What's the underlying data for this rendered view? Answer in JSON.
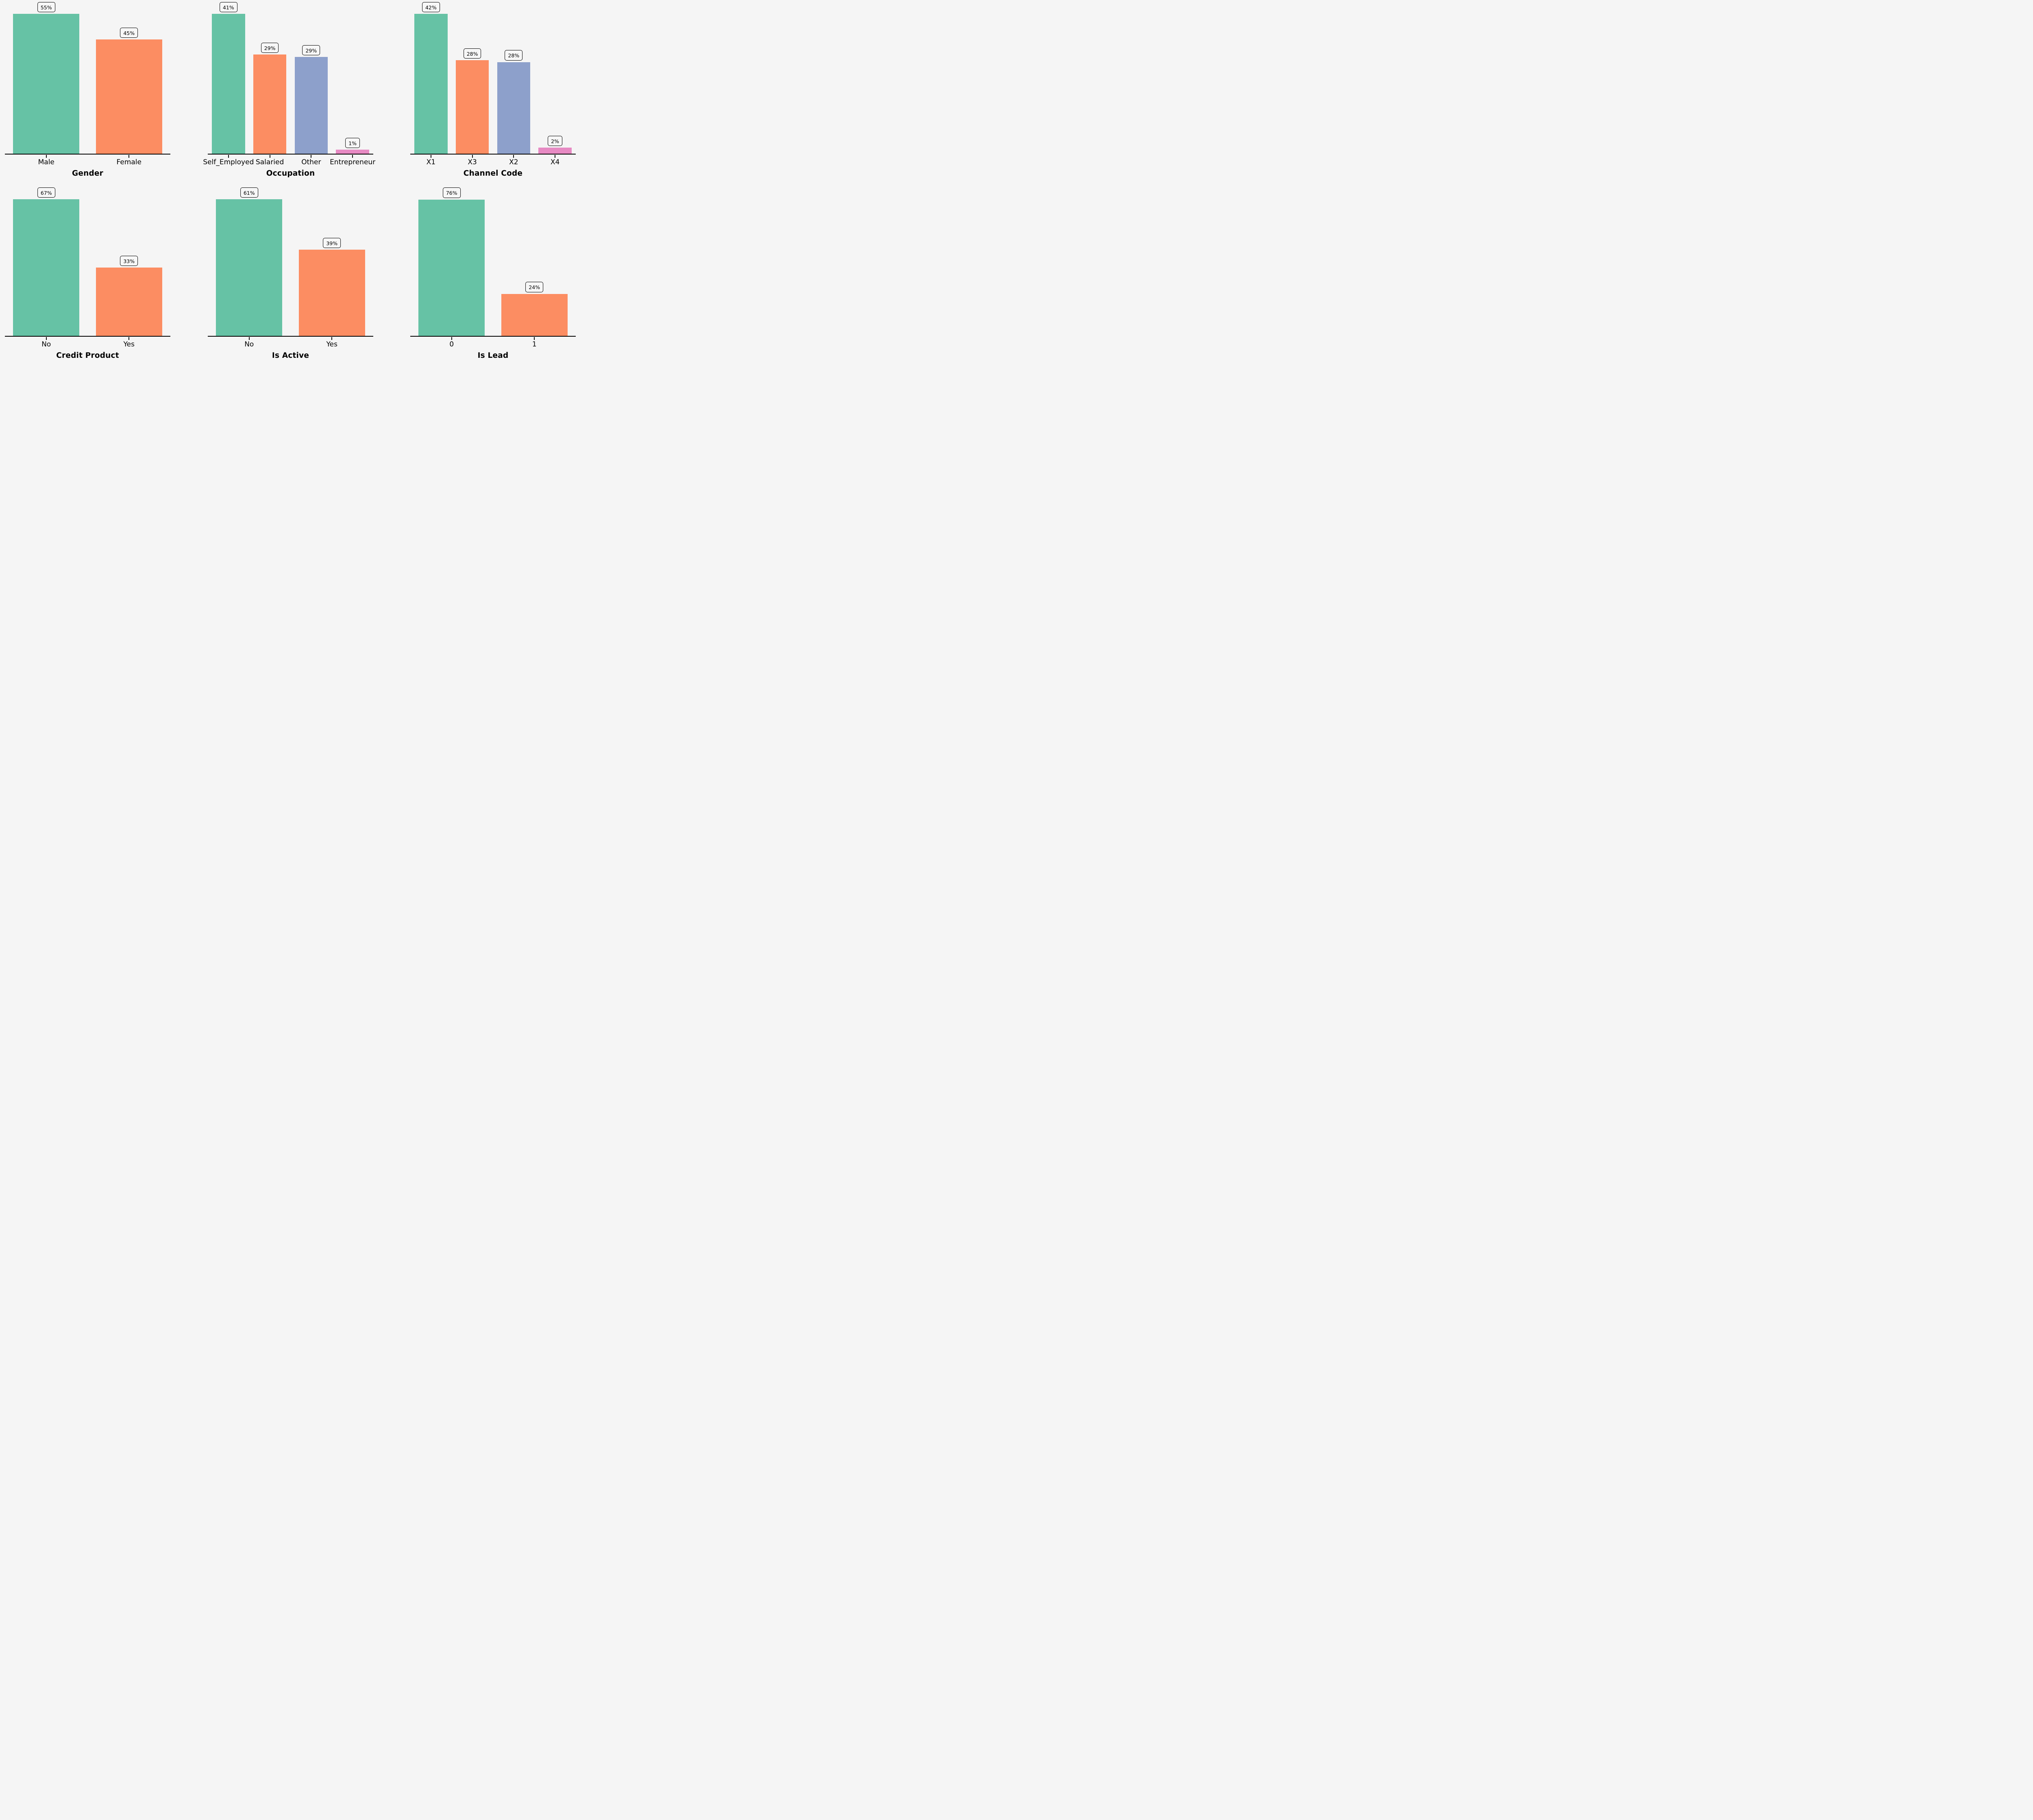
{
  "figure": {
    "background": "#f5f5f5",
    "text_color": "#000000",
    "axis_line_color": "#000000",
    "annotation_box_fill": "#f7f7f7",
    "palette": {
      "green": "#66c2a5",
      "orange": "#fc8d62",
      "blue": "#8da0cb",
      "pink": "#e78ac3"
    },
    "layout": {
      "rows": 2,
      "cols": 3
    }
  },
  "chart_data": [
    {
      "type": "bar",
      "xlabel": "Gender",
      "categories": [
        "Male",
        "Female"
      ],
      "values": [
        55,
        45
      ],
      "value_labels": [
        "55%",
        "45%"
      ],
      "colors": [
        "green",
        "orange"
      ],
      "ylim": [
        0,
        60.5
      ],
      "grid": false,
      "legend": null
    },
    {
      "type": "bar",
      "xlabel": "Occupation",
      "categories": [
        "Self_Employed",
        "Salaried",
        "Other",
        "Entrepreneur"
      ],
      "values": [
        41.3,
        29.3,
        28.6,
        1.3
      ],
      "value_labels": [
        "41%",
        "29%",
        "29%",
        "1%"
      ],
      "colors": [
        "green",
        "orange",
        "blue",
        "pink"
      ],
      "ylim": [
        0,
        45.4
      ],
      "grid": false,
      "legend": null
    },
    {
      "type": "bar",
      "xlabel": "Channel Code",
      "categories": [
        "X1",
        "X3",
        "X2",
        "X4"
      ],
      "values": [
        42.1,
        28.2,
        27.6,
        1.9
      ],
      "value_labels": [
        "42%",
        "28%",
        "28%",
        "2%"
      ],
      "colors": [
        "green",
        "orange",
        "blue",
        "pink"
      ],
      "ylim": [
        0,
        46.3
      ],
      "grid": false,
      "legend": null
    },
    {
      "type": "bar",
      "xlabel": "Credit Product",
      "categories": [
        "No",
        "Yes"
      ],
      "values": [
        66.6,
        33.4
      ],
      "value_labels": [
        "67%",
        "33%"
      ],
      "colors": [
        "green",
        "orange"
      ],
      "ylim": [
        0,
        75
      ],
      "grid": false,
      "legend": null
    },
    {
      "type": "bar",
      "xlabel": "Is Active",
      "categories": [
        "No",
        "Yes"
      ],
      "values": [
        61.3,
        38.7
      ],
      "value_labels": [
        "61%",
        "39%"
      ],
      "colors": [
        "green",
        "orange"
      ],
      "ylim": [
        0,
        69
      ],
      "grid": false,
      "legend": null
    },
    {
      "type": "bar",
      "xlabel": "Is Lead",
      "categories": [
        "0",
        "1"
      ],
      "values": [
        76.3,
        23.7
      ],
      "value_labels": [
        "76%",
        "24%"
      ],
      "colors": [
        "green",
        "orange"
      ],
      "ylim": [
        0,
        86
      ],
      "grid": false,
      "legend": null
    }
  ]
}
